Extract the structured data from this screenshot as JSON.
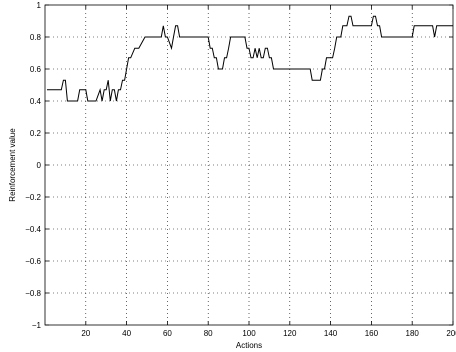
{
  "chart_data": {
    "type": "line",
    "title": "",
    "xlabel": "Actions",
    "ylabel": "Reinforcement value",
    "xlim": [
      0,
      200
    ],
    "ylim": [
      -1,
      1
    ],
    "grid": true,
    "x_ticks": [
      20,
      40,
      60,
      80,
      100,
      120,
      140,
      160,
      180,
      200
    ],
    "x_tick_labels": [
      "20",
      "40",
      "60",
      "80",
      "100",
      "120",
      "140",
      "160",
      "180",
      "200"
    ],
    "y_ticks": [
      -1,
      -0.8,
      -0.6,
      -0.4,
      -0.2,
      0,
      0.2,
      0.4,
      0.6,
      0.8,
      1
    ],
    "y_tick_labels": [
      "−1",
      "−0.8",
      "−0.6",
      "−0.4",
      "−0.2",
      "0",
      "0.2",
      "0.4",
      "0.6",
      "0.8",
      "1"
    ],
    "series": [
      {
        "color": "#000000",
        "x": [
          1,
          8,
          9,
          10,
          11,
          16,
          17,
          20,
          21,
          25,
          27,
          28,
          29,
          30,
          31,
          32,
          33,
          34,
          35,
          36,
          37,
          38,
          39,
          41,
          42,
          44,
          45,
          46,
          49,
          50,
          52,
          53,
          57,
          58,
          59,
          60,
          62,
          63,
          64,
          65,
          66,
          67,
          80,
          81,
          82,
          83,
          84,
          85,
          87,
          88,
          89,
          90,
          91,
          98,
          99,
          100,
          101,
          102,
          103,
          104,
          105,
          106,
          107,
          108,
          109,
          110,
          111,
          112,
          113,
          114,
          115,
          116,
          117,
          118,
          119,
          120,
          130,
          131,
          133,
          134,
          135,
          136,
          137,
          138,
          141,
          142,
          143,
          145,
          146,
          148,
          149,
          150,
          151,
          152,
          154,
          155,
          156,
          160,
          161,
          162,
          163,
          164,
          165,
          166,
          167,
          180,
          181,
          190,
          191,
          192,
          193,
          200
        ],
        "y": [
          0.47,
          0.47,
          0.53,
          0.53,
          0.4,
          0.4,
          0.47,
          0.47,
          0.4,
          0.4,
          0.47,
          0.4,
          0.47,
          0.47,
          0.53,
          0.4,
          0.47,
          0.47,
          0.4,
          0.47,
          0.47,
          0.53,
          0.53,
          0.67,
          0.67,
          0.73,
          0.73,
          0.73,
          0.8,
          0.8,
          0.8,
          0.8,
          0.8,
          0.87,
          0.8,
          0.8,
          0.73,
          0.8,
          0.87,
          0.87,
          0.8,
          0.8,
          0.8,
          0.73,
          0.73,
          0.67,
          0.67,
          0.6,
          0.6,
          0.67,
          0.67,
          0.73,
          0.8,
          0.8,
          0.73,
          0.73,
          0.67,
          0.67,
          0.73,
          0.67,
          0.73,
          0.67,
          0.67,
          0.73,
          0.73,
          0.67,
          0.67,
          0.6,
          0.6,
          0.6,
          0.6,
          0.6,
          0.6,
          0.6,
          0.6,
          0.6,
          0.6,
          0.53,
          0.53,
          0.53,
          0.53,
          0.6,
          0.6,
          0.67,
          0.67,
          0.73,
          0.8,
          0.8,
          0.87,
          0.87,
          0.93,
          0.93,
          0.87,
          0.87,
          0.87,
          0.87,
          0.87,
          0.87,
          0.93,
          0.93,
          0.87,
          0.87,
          0.8,
          0.8,
          0.8,
          0.8,
          0.87,
          0.87,
          0.8,
          0.87,
          0.87,
          0.87
        ]
      }
    ]
  }
}
